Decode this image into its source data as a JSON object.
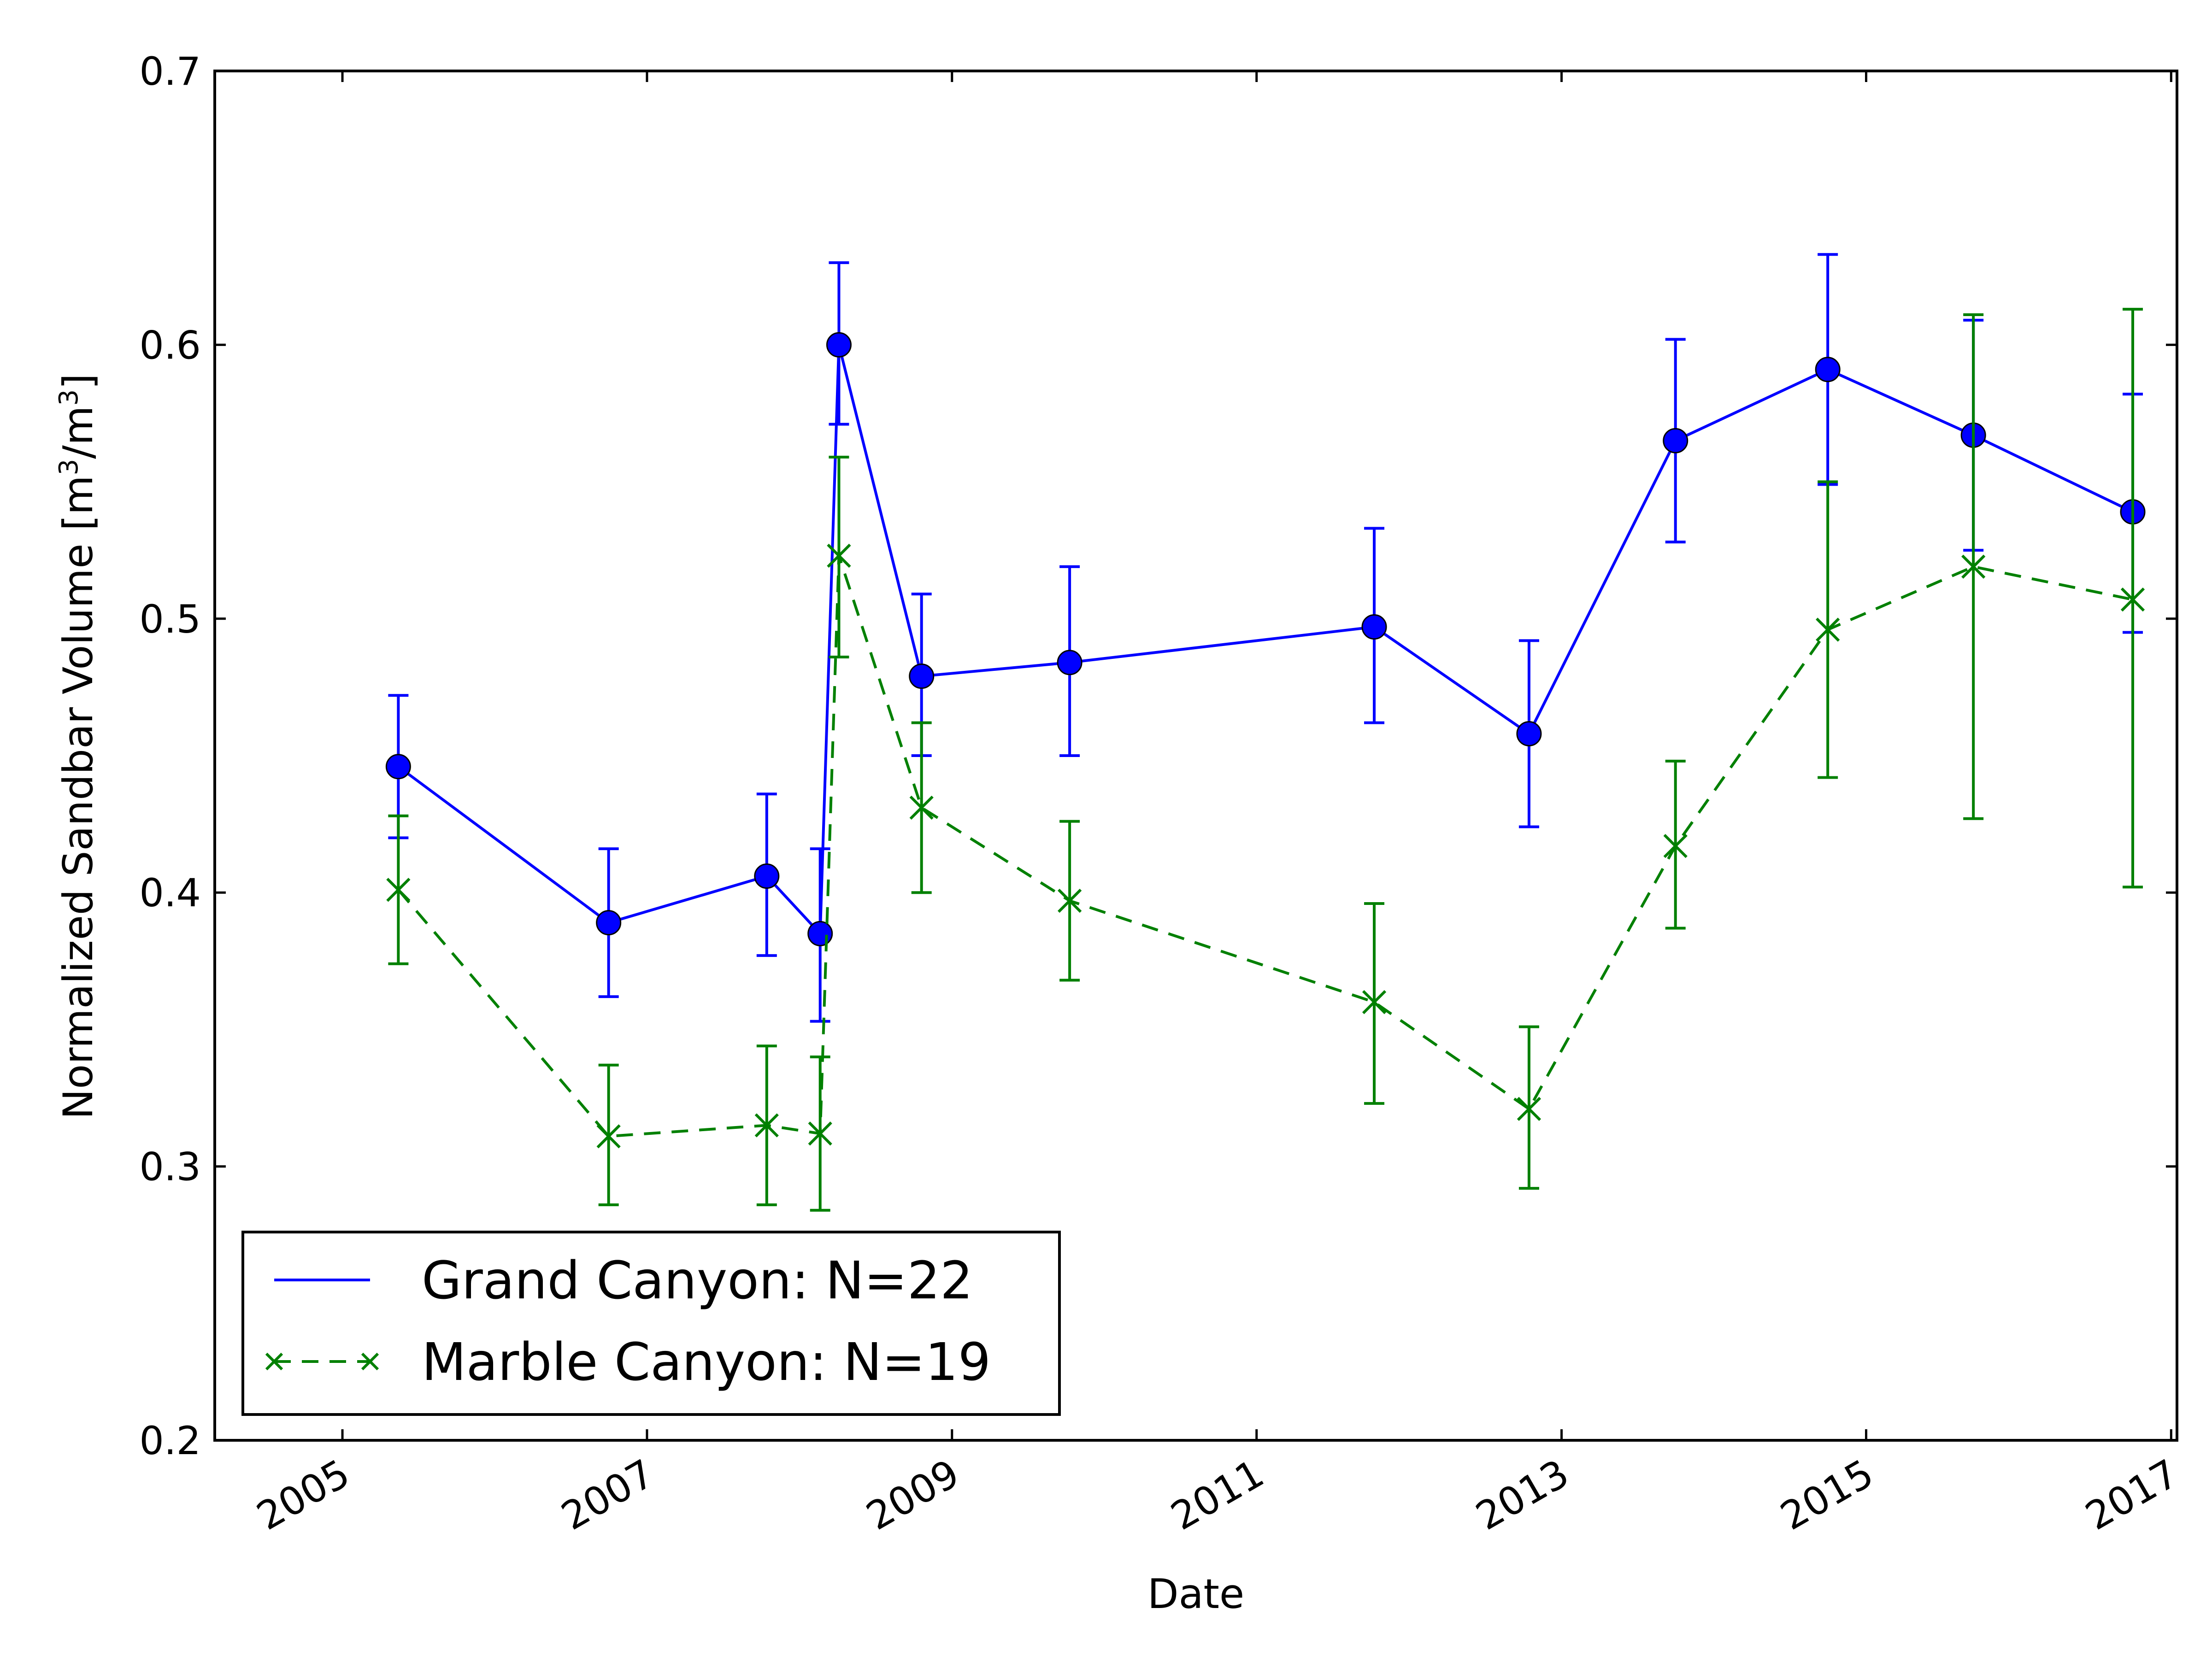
{
  "chart_data": {
    "type": "line",
    "title": "",
    "xlabel": "Date",
    "ylabel_main": "Normalized Sandbar Volume [m",
    "ylabel_sup1": "3",
    "ylabel_mid": "/m",
    "ylabel_sup2": "3",
    "ylabel_end": "]",
    "ylim": [
      0.2,
      0.7
    ],
    "xlim": [
      "2004-03-01",
      "2017-01-15"
    ],
    "x_ticks": [
      "2005",
      "2007",
      "2009",
      "2011",
      "2013",
      "2015",
      "2017"
    ],
    "y_ticks": [
      "0.2",
      "0.3",
      "0.4",
      "0.5",
      "0.6",
      "0.7"
    ],
    "grid": false,
    "legend_position": "lower left",
    "series": [
      {
        "name": "Grand Canyon: N=22",
        "color": "#0000ff",
        "line_style": "solid",
        "marker": "circle",
        "points": [
          {
            "date": "2005-05-15",
            "y": 0.446,
            "err_low": 0.42,
            "err_high": 0.472
          },
          {
            "date": "2006-10-01",
            "y": 0.389,
            "err_low": 0.362,
            "err_high": 0.416
          },
          {
            "date": "2007-10-15",
            "y": 0.406,
            "err_low": 0.377,
            "err_high": 0.436
          },
          {
            "date": "2008-02-20",
            "y": 0.385,
            "err_low": 0.353,
            "err_high": 0.416
          },
          {
            "date": "2008-04-05",
            "y": 0.6,
            "err_low": 0.571,
            "err_high": 0.63
          },
          {
            "date": "2008-10-20",
            "y": 0.479,
            "err_low": 0.45,
            "err_high": 0.509
          },
          {
            "date": "2009-10-10",
            "y": 0.484,
            "err_low": 0.45,
            "err_high": 0.519
          },
          {
            "date": "2011-10-10",
            "y": 0.497,
            "err_low": 0.462,
            "err_high": 0.533
          },
          {
            "date": "2012-10-15",
            "y": 0.458,
            "err_low": 0.424,
            "err_high": 0.492
          },
          {
            "date": "2013-10-01",
            "y": 0.565,
            "err_low": 0.528,
            "err_high": 0.602
          },
          {
            "date": "2014-10-01",
            "y": 0.591,
            "err_low": 0.549,
            "err_high": 0.633
          },
          {
            "date": "2015-09-15",
            "y": 0.567,
            "err_low": 0.525,
            "err_high": 0.609
          },
          {
            "date": "2016-10-01",
            "y": 0.539,
            "err_low": 0.495,
            "err_high": 0.582
          }
        ]
      },
      {
        "name": "Marble Canyon: N=19",
        "color": "#008000",
        "line_style": "dashed",
        "marker": "x",
        "points": [
          {
            "date": "2005-05-15",
            "y": 0.401,
            "err_low": 0.374,
            "err_high": 0.428
          },
          {
            "date": "2006-10-01",
            "y": 0.311,
            "err_low": 0.286,
            "err_high": 0.337
          },
          {
            "date": "2007-10-15",
            "y": 0.315,
            "err_low": 0.286,
            "err_high": 0.344
          },
          {
            "date": "2008-02-20",
            "y": 0.312,
            "err_low": 0.284,
            "err_high": 0.34
          },
          {
            "date": "2008-04-05",
            "y": 0.523,
            "err_low": 0.486,
            "err_high": 0.559
          },
          {
            "date": "2008-10-20",
            "y": 0.431,
            "err_low": 0.4,
            "err_high": 0.462
          },
          {
            "date": "2009-10-10",
            "y": 0.397,
            "err_low": 0.368,
            "err_high": 0.426
          },
          {
            "date": "2011-10-10",
            "y": 0.36,
            "err_low": 0.323,
            "err_high": 0.396
          },
          {
            "date": "2012-10-15",
            "y": 0.321,
            "err_low": 0.292,
            "err_high": 0.351
          },
          {
            "date": "2013-10-01",
            "y": 0.417,
            "err_low": 0.387,
            "err_high": 0.448
          },
          {
            "date": "2014-10-01",
            "y": 0.496,
            "err_low": 0.442,
            "err_high": 0.55
          },
          {
            "date": "2015-09-15",
            "y": 0.519,
            "err_low": 0.427,
            "err_high": 0.611
          },
          {
            "date": "2016-10-01",
            "y": 0.507,
            "err_low": 0.402,
            "err_high": 0.613
          }
        ]
      }
    ]
  }
}
